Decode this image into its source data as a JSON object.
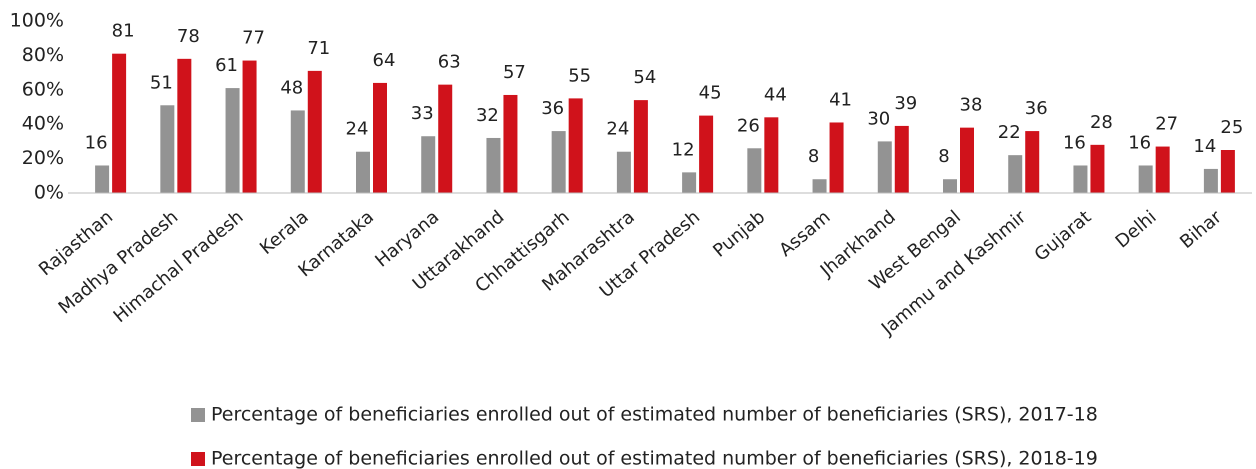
{
  "chart_data": {
    "type": "bar",
    "categories": [
      "Rajasthan",
      "Madhya Pradesh",
      "Himachal Pradesh",
      "Kerala",
      "Karnataka",
      "Haryana",
      "Uttarakhand",
      "Chhattisgarh",
      "Maharashtra",
      "Uttar Pradesh",
      "Punjab",
      "Assam",
      "Jharkhand",
      "West Bengal",
      "Jammu and Kashmir",
      "Gujarat",
      "Delhi",
      "Bihar"
    ],
    "series": [
      {
        "name": "Percentage of beneficiaries enrolled out of estimated number of beneficiaries (SRS), 2017-18",
        "color": "#939393",
        "values": [
          16,
          51,
          61,
          48,
          24,
          33,
          32,
          36,
          24,
          12,
          26,
          8,
          30,
          8,
          22,
          16,
          16,
          14
        ]
      },
      {
        "name": "Percentage of beneficiaries enrolled out of estimated number of beneficiaries (SRS), 2018-19",
        "color": "#d0121b",
        "values": [
          81,
          78,
          77,
          71,
          64,
          63,
          57,
          55,
          54,
          45,
          44,
          41,
          39,
          38,
          36,
          28,
          27,
          25
        ]
      }
    ],
    "ylim": [
      0,
      100
    ],
    "yticks": [
      {
        "value": 0,
        "label": "0%"
      },
      {
        "value": 20,
        "label": "20%"
      },
      {
        "value": 40,
        "label": "40%"
      },
      {
        "value": 60,
        "label": "60%"
      },
      {
        "value": 80,
        "label": "80%"
      },
      {
        "value": 100,
        "label": "100%"
      }
    ],
    "grid": false,
    "legend": "bottom"
  }
}
